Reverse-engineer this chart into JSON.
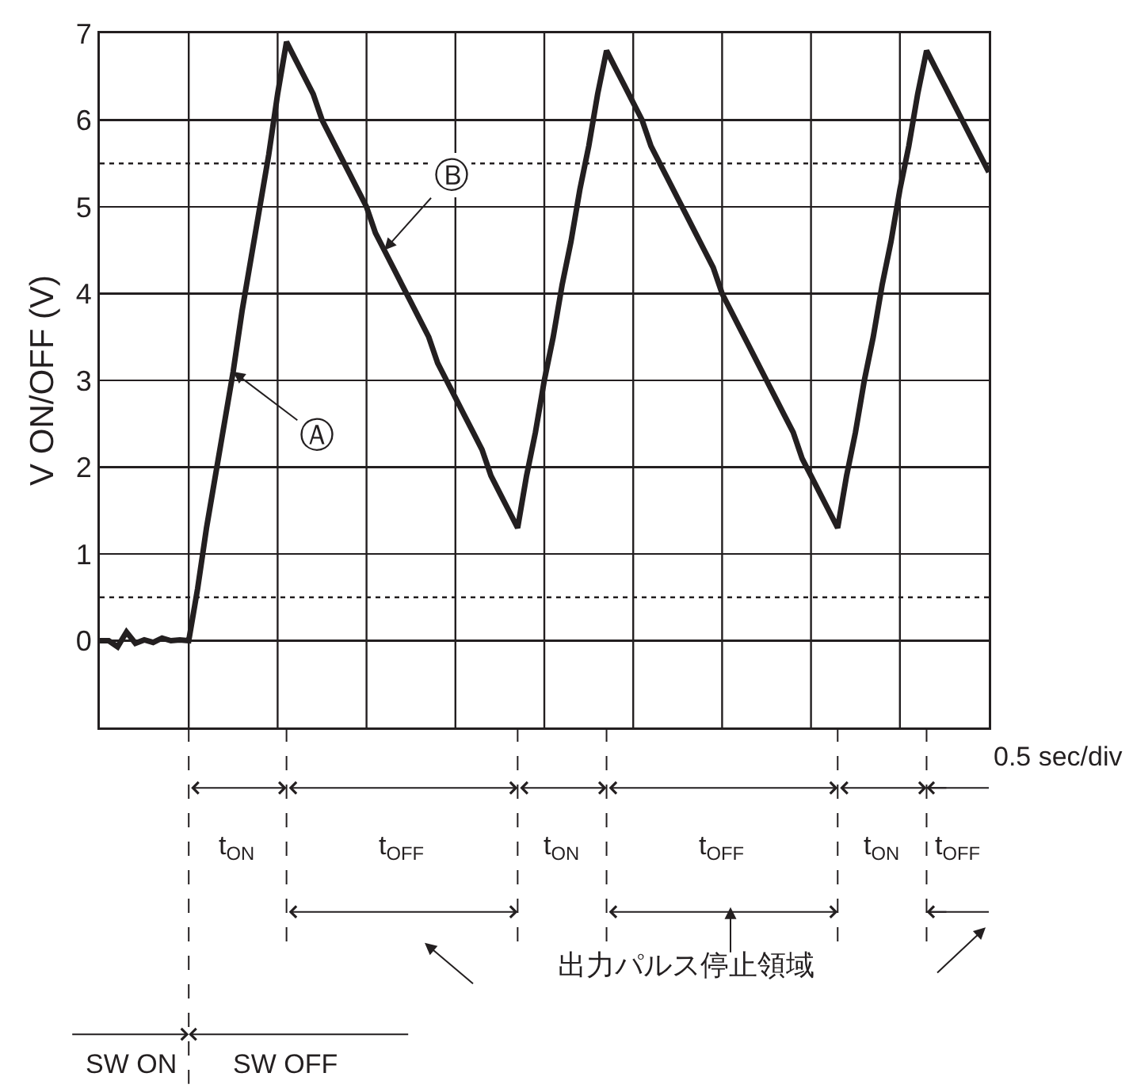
{
  "chart_data": {
    "type": "line",
    "ylabel": "V ON/OFF (V)",
    "color": "#231f20",
    "categories": [
      null,
      null,
      null,
      null,
      null,
      null,
      null,
      null,
      null,
      null,
      null,
      null,
      null,
      null,
      null,
      null,
      null,
      null,
      null,
      null,
      null,
      null,
      null,
      null,
      null,
      null,
      null,
      null,
      null,
      null,
      null,
      null,
      null,
      null,
      null,
      null,
      null,
      null,
      null,
      null,
      null,
      null,
      null,
      null,
      null,
      null,
      null,
      null,
      null,
      null,
      null,
      null,
      null,
      null,
      null,
      null,
      null,
      null,
      null,
      null,
      null,
      null,
      null,
      null,
      null,
      null,
      null,
      null,
      null,
      null,
      null,
      null,
      null,
      null,
      null,
      null,
      null,
      null,
      null,
      null,
      null,
      null,
      null,
      null,
      null,
      null,
      null,
      null,
      null,
      null,
      null,
      null,
      null,
      null,
      null,
      null,
      null,
      null,
      null,
      null,
      null
    ],
    "values": [
      0,
      0,
      -0.07,
      0.1,
      -0.03,
      0.01,
      -0.02,
      0.03,
      0,
      0.01,
      0,
      0.6,
      1.3,
      1.9,
      2.5,
      3.1,
      3.8,
      4.4,
      5.0,
      5.6,
      6.3,
      6.9,
      6.7,
      6.5,
      6.3,
      6.0,
      5.8,
      5.6,
      5.4,
      5.2,
      5.0,
      4.7,
      4.5,
      4.3,
      4.1,
      3.9,
      3.7,
      3.5,
      3.2,
      3.0,
      2.8,
      2.6,
      2.4,
      2.2,
      1.9,
      1.7,
      1.5,
      1.3,
      1.9,
      2.4,
      3.0,
      3.5,
      4.1,
      4.6,
      5.2,
      5.7,
      6.3,
      6.8,
      6.6,
      6.4,
      6.2,
      6.0,
      5.7,
      5.5,
      5.3,
      5.1,
      4.9,
      4.7,
      4.5,
      4.3,
      4.0,
      3.8,
      3.6,
      3.4,
      3.2,
      3.0,
      2.8,
      2.6,
      2.4,
      2.1,
      1.9,
      1.7,
      1.5,
      1.3,
      1.9,
      2.4,
      3.0,
      3.5,
      4.1,
      4.6,
      5.2,
      5.7,
      6.3,
      6.8,
      6.6,
      6.4,
      6.2,
      6.0,
      5.8,
      5.6,
      5.4
    ],
    "ylim": [
      -1,
      7
    ],
    "yticks": [
      0,
      1,
      2,
      3,
      4,
      5,
      6,
      7
    ],
    "grid": true,
    "tick_labels": "y",
    "ref_lines": [
      {
        "axis": "y",
        "value": 5.5,
        "line_style": "dotted",
        "color": "#231f20"
      },
      {
        "axis": "y",
        "value": 0.5,
        "line_style": "dotted",
        "color": "#231f20"
      }
    ],
    "annotations": [
      "0.5 sec/div",
      "Ⓐ",
      "Ⓑ",
      "t$_{ON}$",
      "t$_{OFF}$",
      "t$_{ON}$",
      "t$_{OFF}$",
      "t$_{ON}$",
      "t$_{OFF}$",
      "出力パルス停止領域",
      "SW ON",
      "SW OFF"
    ]
  }
}
